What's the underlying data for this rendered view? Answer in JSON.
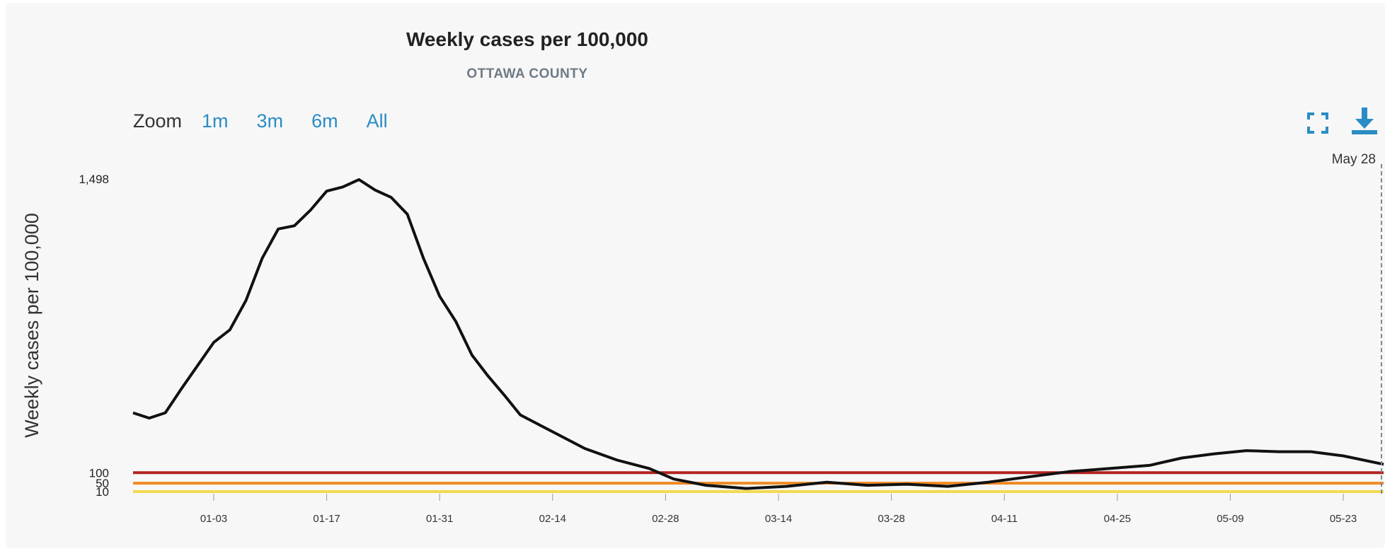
{
  "chart_data": {
    "type": "line",
    "title": "Weekly cases per 100,000",
    "subtitle": "OTTAWA COUNTY",
    "ylabel": "Weekly cases per 100,000",
    "ylim": [
      0,
      1498
    ],
    "y_ticks": [
      {
        "value": 100,
        "label": "100"
      },
      {
        "value": 50,
        "label": "50"
      },
      {
        "value": 10,
        "label": "10"
      },
      {
        "value": 1498,
        "label": "1,498"
      }
    ],
    "x_ticks": [
      "01-03",
      "01-17",
      "01-31",
      "02-14",
      "02-28",
      "03-14",
      "03-28",
      "04-11",
      "04-25",
      "05-09",
      "05-23"
    ],
    "x_start_label": "12-24",
    "grid": false,
    "thresholds": [
      {
        "value": 100,
        "color": "#b22222"
      },
      {
        "value": 50,
        "color": "#f08a24"
      },
      {
        "value": 10,
        "color": "#f5d94e"
      }
    ],
    "crosshair_label": "May 28",
    "series": [
      {
        "color": "#111111",
        "x": [
          "12-24",
          "12-26",
          "12-28",
          "12-30",
          "01-01",
          "01-03",
          "01-05",
          "01-07",
          "01-09",
          "01-11",
          "01-13",
          "01-15",
          "01-17",
          "01-19",
          "01-21",
          "01-23",
          "01-25",
          "01-27",
          "01-29",
          "01-31",
          "02-02",
          "02-04",
          "02-06",
          "02-08",
          "02-10",
          "02-12",
          "02-14",
          "02-18",
          "02-22",
          "02-26",
          "03-01",
          "03-05",
          "03-10",
          "03-15",
          "03-20",
          "03-25",
          "03-30",
          "04-04",
          "04-09",
          "04-14",
          "04-19",
          "04-24",
          "04-29",
          "05-03",
          "05-07",
          "05-11",
          "05-15",
          "05-19",
          "05-23",
          "05-28"
        ],
        "y": [
          385,
          360,
          385,
          500,
          610,
          720,
          780,
          920,
          1120,
          1260,
          1275,
          1350,
          1440,
          1460,
          1495,
          1445,
          1410,
          1330,
          1120,
          940,
          820,
          660,
          560,
          470,
          375,
          335,
          295,
          215,
          160,
          120,
          70,
          40,
          25,
          35,
          55,
          40,
          45,
          35,
          55,
          80,
          105,
          120,
          135,
          170,
          190,
          205,
          200,
          200,
          180,
          140
        ]
      }
    ]
  },
  "toolbar": {
    "zoom_label": "Zoom",
    "zoom_options": [
      "1m",
      "3m",
      "6m",
      "All"
    ],
    "fullscreen_icon": "fullscreen-icon",
    "download_icon": "download-icon",
    "accent": "#2a8cc4"
  }
}
